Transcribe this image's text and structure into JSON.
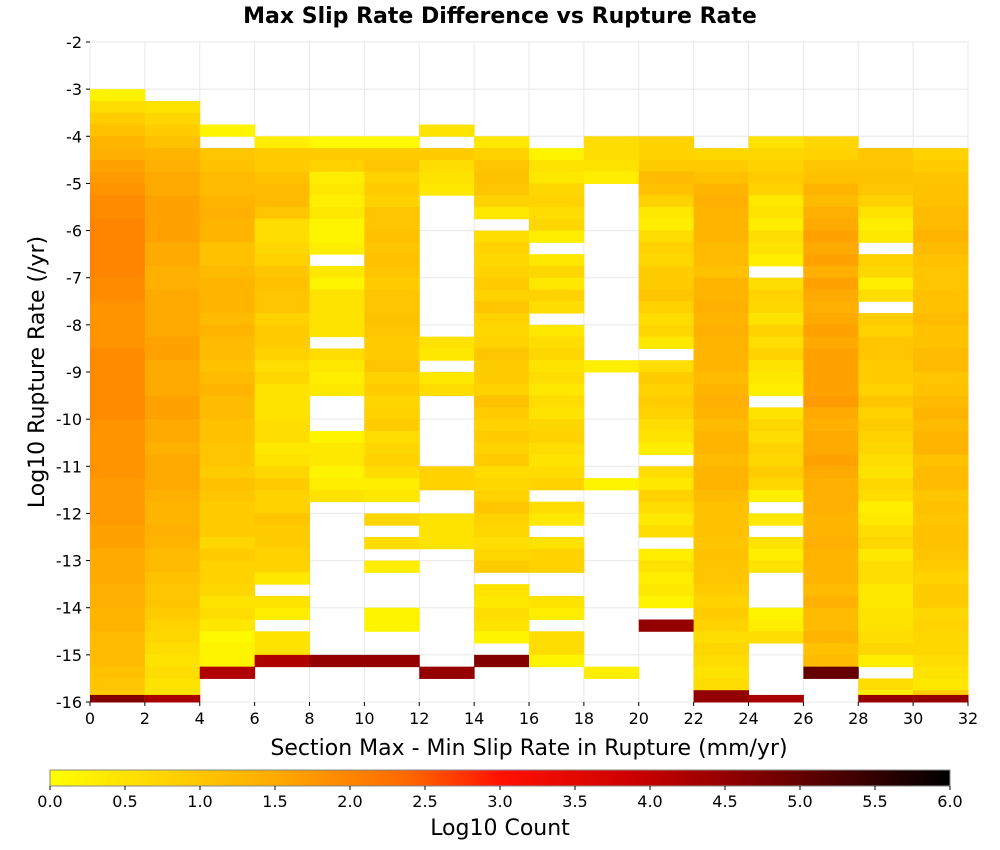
{
  "chart_data": {
    "type": "heatmap",
    "title": "Max Slip Rate Difference vs Rupture Rate",
    "xlabel": "Section Max - Min Slip Rate in Rupture (mm/yr)",
    "ylabel": "Log10 Rupture Rate (/yr)",
    "colorbar_label": "Log10 Count",
    "xlim": [
      0,
      32
    ],
    "ylim": [
      -16,
      -2
    ],
    "x_bin_width": 2,
    "y_bin_height": 0.25,
    "x_ticks": [
      "0",
      "2",
      "4",
      "6",
      "8",
      "10",
      "12",
      "14",
      "16",
      "18",
      "20",
      "22",
      "24",
      "26",
      "28",
      "30",
      "32"
    ],
    "y_ticks": [
      "-2",
      "-3",
      "-4",
      "-5",
      "-6",
      "-7",
      "-8",
      "-9",
      "-10",
      "-11",
      "-12",
      "-13",
      "-14",
      "-15",
      "-16"
    ],
    "colorbar_ticks": [
      "0.0",
      "0.5",
      "1.0",
      "1.5",
      "2.0",
      "2.5",
      "3.0",
      "3.5",
      "4.0",
      "4.5",
      "5.0",
      "5.5",
      "6.0"
    ],
    "colorbar_range": [
      0,
      6
    ],
    "colormap": [
      "#ffff00",
      "#ffcc00",
      "#ff9900",
      "#ff6600",
      "#ff0000",
      "#cc0000",
      "#990000",
      "#000000"
    ],
    "columns": [
      {
        "x": 0,
        "top": -3.0,
        "values": [
          0.2,
          0.6,
          0.9,
          1.1,
          1.3,
          1.4,
          1.6,
          1.7,
          1.8,
          1.9,
          1.9,
          2.0,
          2.0,
          2.0,
          2.0,
          2.0,
          1.9,
          1.9,
          1.8,
          1.8,
          1.8,
          1.8,
          1.9,
          1.9,
          1.9,
          1.9,
          1.9,
          1.9,
          1.8,
          1.8,
          1.8,
          1.8,
          1.8,
          1.7,
          1.7,
          1.7,
          1.7,
          1.6,
          1.6,
          1.5,
          1.5,
          1.5,
          1.4,
          1.4,
          1.3,
          1.3,
          1.2,
          1.2,
          1.2,
          1.1,
          1.0,
          0.9,
          4.7
        ]
      },
      {
        "x": 2,
        "top": -3.25,
        "values": [
          0.5,
          0.7,
          0.9,
          1.1,
          1.3,
          1.4,
          1.5,
          1.5,
          1.6,
          1.6,
          1.6,
          1.6,
          1.5,
          1.5,
          1.4,
          1.4,
          1.5,
          1.5,
          1.5,
          1.5,
          1.6,
          1.6,
          1.5,
          1.5,
          1.5,
          1.6,
          1.6,
          1.5,
          1.5,
          1.4,
          1.5,
          1.5,
          1.5,
          1.4,
          1.3,
          1.3,
          1.4,
          1.3,
          1.2,
          1.2,
          1.1,
          1.0,
          1.0,
          0.9,
          0.8,
          0.7,
          0.6,
          0.5,
          0.6,
          0.5,
          0.5,
          4.3
        ]
      },
      {
        "x": 4,
        "top": -3.75,
        "values": [
          0.2,
          null,
          1.0,
          1.1,
          1.2,
          1.2,
          1.3,
          1.4,
          1.3,
          1.3,
          1.1,
          1.1,
          1.2,
          1.3,
          1.3,
          1.3,
          1.2,
          1.3,
          1.2,
          1.2,
          1.1,
          1.2,
          1.3,
          1.2,
          1.2,
          1.1,
          1.1,
          1.0,
          1.0,
          0.9,
          1.1,
          1.0,
          0.9,
          0.9,
          0.9,
          0.7,
          0.9,
          0.8,
          0.8,
          0.7,
          0.5,
          0.6,
          0.4,
          0.1,
          0.2,
          0.2,
          4.2
        ]
      },
      {
        "x": 6,
        "top": -4.0,
        "values": [
          0.3,
          0.9,
          0.9,
          1.1,
          1.2,
          1.2,
          1.0,
          0.6,
          0.6,
          0.7,
          0.8,
          1.0,
          1.1,
          1.0,
          1.0,
          0.8,
          0.9,
          0.9,
          0.8,
          0.6,
          0.7,
          0.5,
          0.5,
          0.5,
          0.6,
          0.6,
          0.4,
          0.5,
          0.7,
          0.9,
          0.8,
          0.8,
          1.0,
          0.9,
          0.9,
          0.8,
          0.8,
          0.4,
          null,
          0.5,
          0.3,
          null,
          0.5,
          0.5,
          4.2
        ]
      },
      {
        "x": 8,
        "top": -4.0,
        "values": [
          0.1,
          0.9,
          0.8,
          0.3,
          0.4,
          0.3,
          0.4,
          0.2,
          0.2,
          0.3,
          null,
          0.4,
          0.2,
          0.5,
          0.5,
          0.5,
          0.5,
          null,
          0.6,
          0.4,
          0.3,
          0.4,
          null,
          null,
          null,
          0.2,
          0.4,
          0.4,
          0.2,
          0.3,
          0.5,
          null,
          null,
          null,
          null,
          null,
          null,
          null,
          null,
          null,
          null,
          null,
          null,
          null,
          4.5
        ]
      },
      {
        "x": 10,
        "top": -4.0,
        "values": [
          0.1,
          0.9,
          1.0,
          0.8,
          0.9,
          0.8,
          1.0,
          1.0,
          1.1,
          1.0,
          1.1,
          1.0,
          0.9,
          1.0,
          1.0,
          1.1,
          1.0,
          0.9,
          0.9,
          1.0,
          0.8,
          0.9,
          0.7,
          0.8,
          0.9,
          0.6,
          0.7,
          0.8,
          0.6,
          0.3,
          0.4,
          null,
          0.7,
          null,
          0.6,
          null,
          0.3,
          null,
          null,
          null,
          0.2,
          0.2,
          null,
          null,
          4.5
        ]
      },
      {
        "x": 12,
        "top": -3.75,
        "values": [
          0.5,
          null,
          0.9,
          0.6,
          0.5,
          0.4,
          null,
          null,
          null,
          null,
          null,
          null,
          null,
          null,
          null,
          null,
          null,
          null,
          0.5,
          0.4,
          null,
          0.4,
          0.6,
          null,
          null,
          null,
          null,
          null,
          null,
          0.8,
          0.8,
          null,
          null,
          0.5,
          0.5,
          0.5,
          null,
          null,
          null,
          null,
          null,
          null,
          null,
          null,
          null,
          null,
          4.5
        ]
      },
      {
        "x": 14,
        "top": -4.0,
        "values": [
          0.4,
          0.8,
          1.0,
          1.1,
          1.0,
          0.8,
          0.4,
          null,
          0.6,
          0.8,
          0.7,
          0.8,
          0.9,
          0.8,
          1.0,
          0.8,
          0.7,
          0.8,
          1.0,
          0.9,
          0.9,
          0.8,
          1.1,
          0.9,
          0.8,
          0.9,
          0.8,
          0.9,
          0.6,
          0.7,
          0.8,
          1.0,
          0.8,
          0.7,
          0.6,
          0.7,
          0.9,
          null,
          0.5,
          0.4,
          0.6,
          0.5,
          0.2,
          null,
          4.7
        ]
      },
      {
        "x": 16,
        "top": -4.25,
        "values": [
          0.2,
          0.5,
          0.4,
          0.7,
          0.8,
          0.6,
          0.7,
          0.3,
          null,
          0.4,
          0.7,
          0.4,
          0.8,
          0.6,
          null,
          0.4,
          0.6,
          0.7,
          0.5,
          0.6,
          0.4,
          0.6,
          0.5,
          0.7,
          0.8,
          0.6,
          0.5,
          0.6,
          0.8,
          null,
          0.6,
          0.4,
          null,
          0.5,
          0.8,
          0.8,
          null,
          null,
          0.5,
          0.3,
          null,
          0.6,
          0.6,
          0.2
        ]
      },
      {
        "x": 18,
        "top": -4.0,
        "values": [
          0.6,
          0.6,
          0.5,
          0.3,
          null,
          null,
          null,
          null,
          null,
          null,
          null,
          null,
          null,
          null,
          null,
          null,
          null,
          null,
          null,
          0.3,
          null,
          null,
          null,
          null,
          null,
          null,
          null,
          null,
          null,
          0.2,
          null,
          null,
          null,
          null,
          null,
          null,
          null,
          null,
          null,
          null,
          null,
          null,
          null,
          null,
          null,
          0.3
        ]
      },
      {
        "x": 20,
        "top": -4.0,
        "values": [
          0.8,
          0.8,
          0.9,
          1.2,
          1.1,
          0.8,
          0.4,
          0.3,
          0.6,
          0.8,
          0.7,
          0.9,
          0.9,
          1.0,
          0.8,
          0.6,
          0.7,
          0.4,
          null,
          0.6,
          0.9,
          0.8,
          0.9,
          0.8,
          0.6,
          0.5,
          0.3,
          null,
          0.6,
          0.4,
          0.8,
          0.6,
          0.4,
          0.6,
          null,
          0.3,
          0.5,
          0.3,
          0.4,
          0.2,
          null,
          4.5
        ]
      },
      {
        "x": 22,
        "top": -4.25,
        "values": [
          0.7,
          0.9,
          1.1,
          1.3,
          1.4,
          1.3,
          1.3,
          1.3,
          1.2,
          1.2,
          1.1,
          1.3,
          1.3,
          1.4,
          1.3,
          1.4,
          1.3,
          1.3,
          1.3,
          1.2,
          1.3,
          1.4,
          1.3,
          1.2,
          1.3,
          1.3,
          1.2,
          1.3,
          1.3,
          1.2,
          1.1,
          1.1,
          1.1,
          1.0,
          1.1,
          1.0,
          1.0,
          0.9,
          0.8,
          0.9,
          0.8,
          0.6,
          0.7,
          0.6,
          0.5,
          0.6,
          4.5
        ]
      },
      {
        "x": 24,
        "top": -4.0,
        "values": [
          0.5,
          0.7,
          0.8,
          0.9,
          0.8,
          0.4,
          0.5,
          0.3,
          0.6,
          0.5,
          0.3,
          null,
          0.6,
          0.8,
          0.7,
          0.5,
          0.8,
          0.6,
          0.8,
          0.5,
          0.4,
          0.3,
          null,
          0.5,
          0.7,
          0.6,
          0.8,
          0.7,
          0.9,
          0.7,
          0.3,
          null,
          0.4,
          null,
          0.5,
          0.3,
          0.5,
          null,
          null,
          null,
          0.2,
          0.3,
          0.6,
          null,
          null,
          null,
          null,
          null,
          4.3
        ]
      },
      {
        "x": 26,
        "top": -4.0,
        "values": [
          0.7,
          0.8,
          1.0,
          1.1,
          1.3,
          1.2,
          1.4,
          1.5,
          1.6,
          1.5,
          1.6,
          1.4,
          1.6,
          1.5,
          1.4,
          1.5,
          1.6,
          1.5,
          1.6,
          1.6,
          1.6,
          1.6,
          1.7,
          1.5,
          1.4,
          1.5,
          1.5,
          1.6,
          1.5,
          1.4,
          1.4,
          1.4,
          1.3,
          1.3,
          1.4,
          1.3,
          1.3,
          1.3,
          1.2,
          1.4,
          1.2,
          1.2,
          1.3,
          1.1,
          1.2,
          5.0
        ]
      },
      {
        "x": 28,
        "top": -4.25,
        "values": [
          1.0,
          1.0,
          1.1,
          1.0,
          0.8,
          0.5,
          0.3,
          0.4,
          null,
          0.8,
          0.7,
          0.3,
          0.6,
          null,
          0.9,
          0.8,
          1.0,
          1.0,
          0.9,
          0.9,
          0.8,
          1.0,
          0.8,
          0.9,
          0.8,
          0.7,
          0.6,
          0.5,
          0.7,
          0.6,
          0.3,
          0.4,
          0.6,
          0.7,
          0.4,
          0.6,
          0.6,
          0.4,
          0.4,
          0.5,
          0.5,
          0.6,
          0.7,
          0.3,
          null,
          0.6,
          0.3,
          0.5,
          null,
          4.5
        ]
      },
      {
        "x": 30,
        "top": -4.25,
        "values": [
          0.8,
          0.9,
          1.0,
          1.1,
          1.1,
          1.2,
          1.2,
          1.3,
          1.2,
          1.1,
          1.0,
          1.0,
          1.1,
          1.1,
          1.2,
          1.1,
          1.1,
          1.2,
          1.2,
          1.0,
          1.1,
          1.2,
          1.3,
          1.2,
          1.3,
          1.3,
          1.1,
          1.2,
          1.2,
          1.0,
          1.1,
          1.0,
          1.1,
          1.1,
          1.0,
          0.9,
          0.8,
          0.9,
          0.9,
          0.7,
          0.8,
          0.7,
          0.7,
          0.6,
          0.5,
          0.4,
          0.9,
          4.5
        ]
      }
    ]
  }
}
